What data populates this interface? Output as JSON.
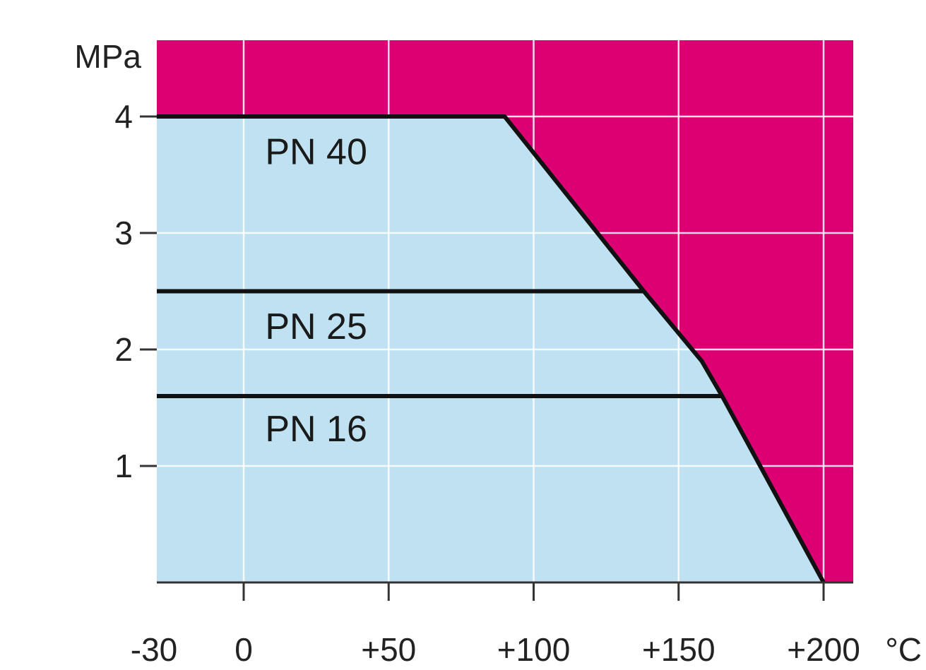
{
  "chart_data": {
    "type": "area",
    "title": "",
    "ylabel": "MPa",
    "xunit": "°C",
    "xlim": [
      -30,
      210
    ],
    "ylim": [
      0,
      4.65
    ],
    "grid": true,
    "x_ticks": [
      {
        "value": -30,
        "label": "-30"
      },
      {
        "value": 0,
        "label": "0"
      },
      {
        "value": 50,
        "label": "+50"
      },
      {
        "value": 100,
        "label": "+100"
      },
      {
        "value": 150,
        "label": "+150"
      },
      {
        "value": 200,
        "label": "+200"
      }
    ],
    "y_ticks": [
      {
        "value": 1,
        "label": "1"
      },
      {
        "value": 2,
        "label": "2"
      },
      {
        "value": 3,
        "label": "3"
      },
      {
        "value": 4,
        "label": "4"
      }
    ],
    "envelope": {
      "x": [
        -30,
        90,
        138,
        158,
        165,
        200
      ],
      "y": [
        4.0,
        4.0,
        2.5,
        1.9,
        1.6,
        0
      ]
    },
    "series": [
      {
        "name": "PN 40",
        "y": 4.0,
        "x_end": 90,
        "label_at": [
          25,
          3.7
        ]
      },
      {
        "name": "PN 25",
        "y": 2.5,
        "x_end": 138,
        "label_at": [
          25,
          2.2
        ]
      },
      {
        "name": "PN 16",
        "y": 1.6,
        "x_end": 165,
        "label_at": [
          25,
          1.32
        ]
      }
    ],
    "colors": {
      "allowed": "#bfe1f1",
      "forbidden": "#dc0073",
      "grid": "#ffffff",
      "line": "#111111",
      "axis": "#333333"
    }
  }
}
